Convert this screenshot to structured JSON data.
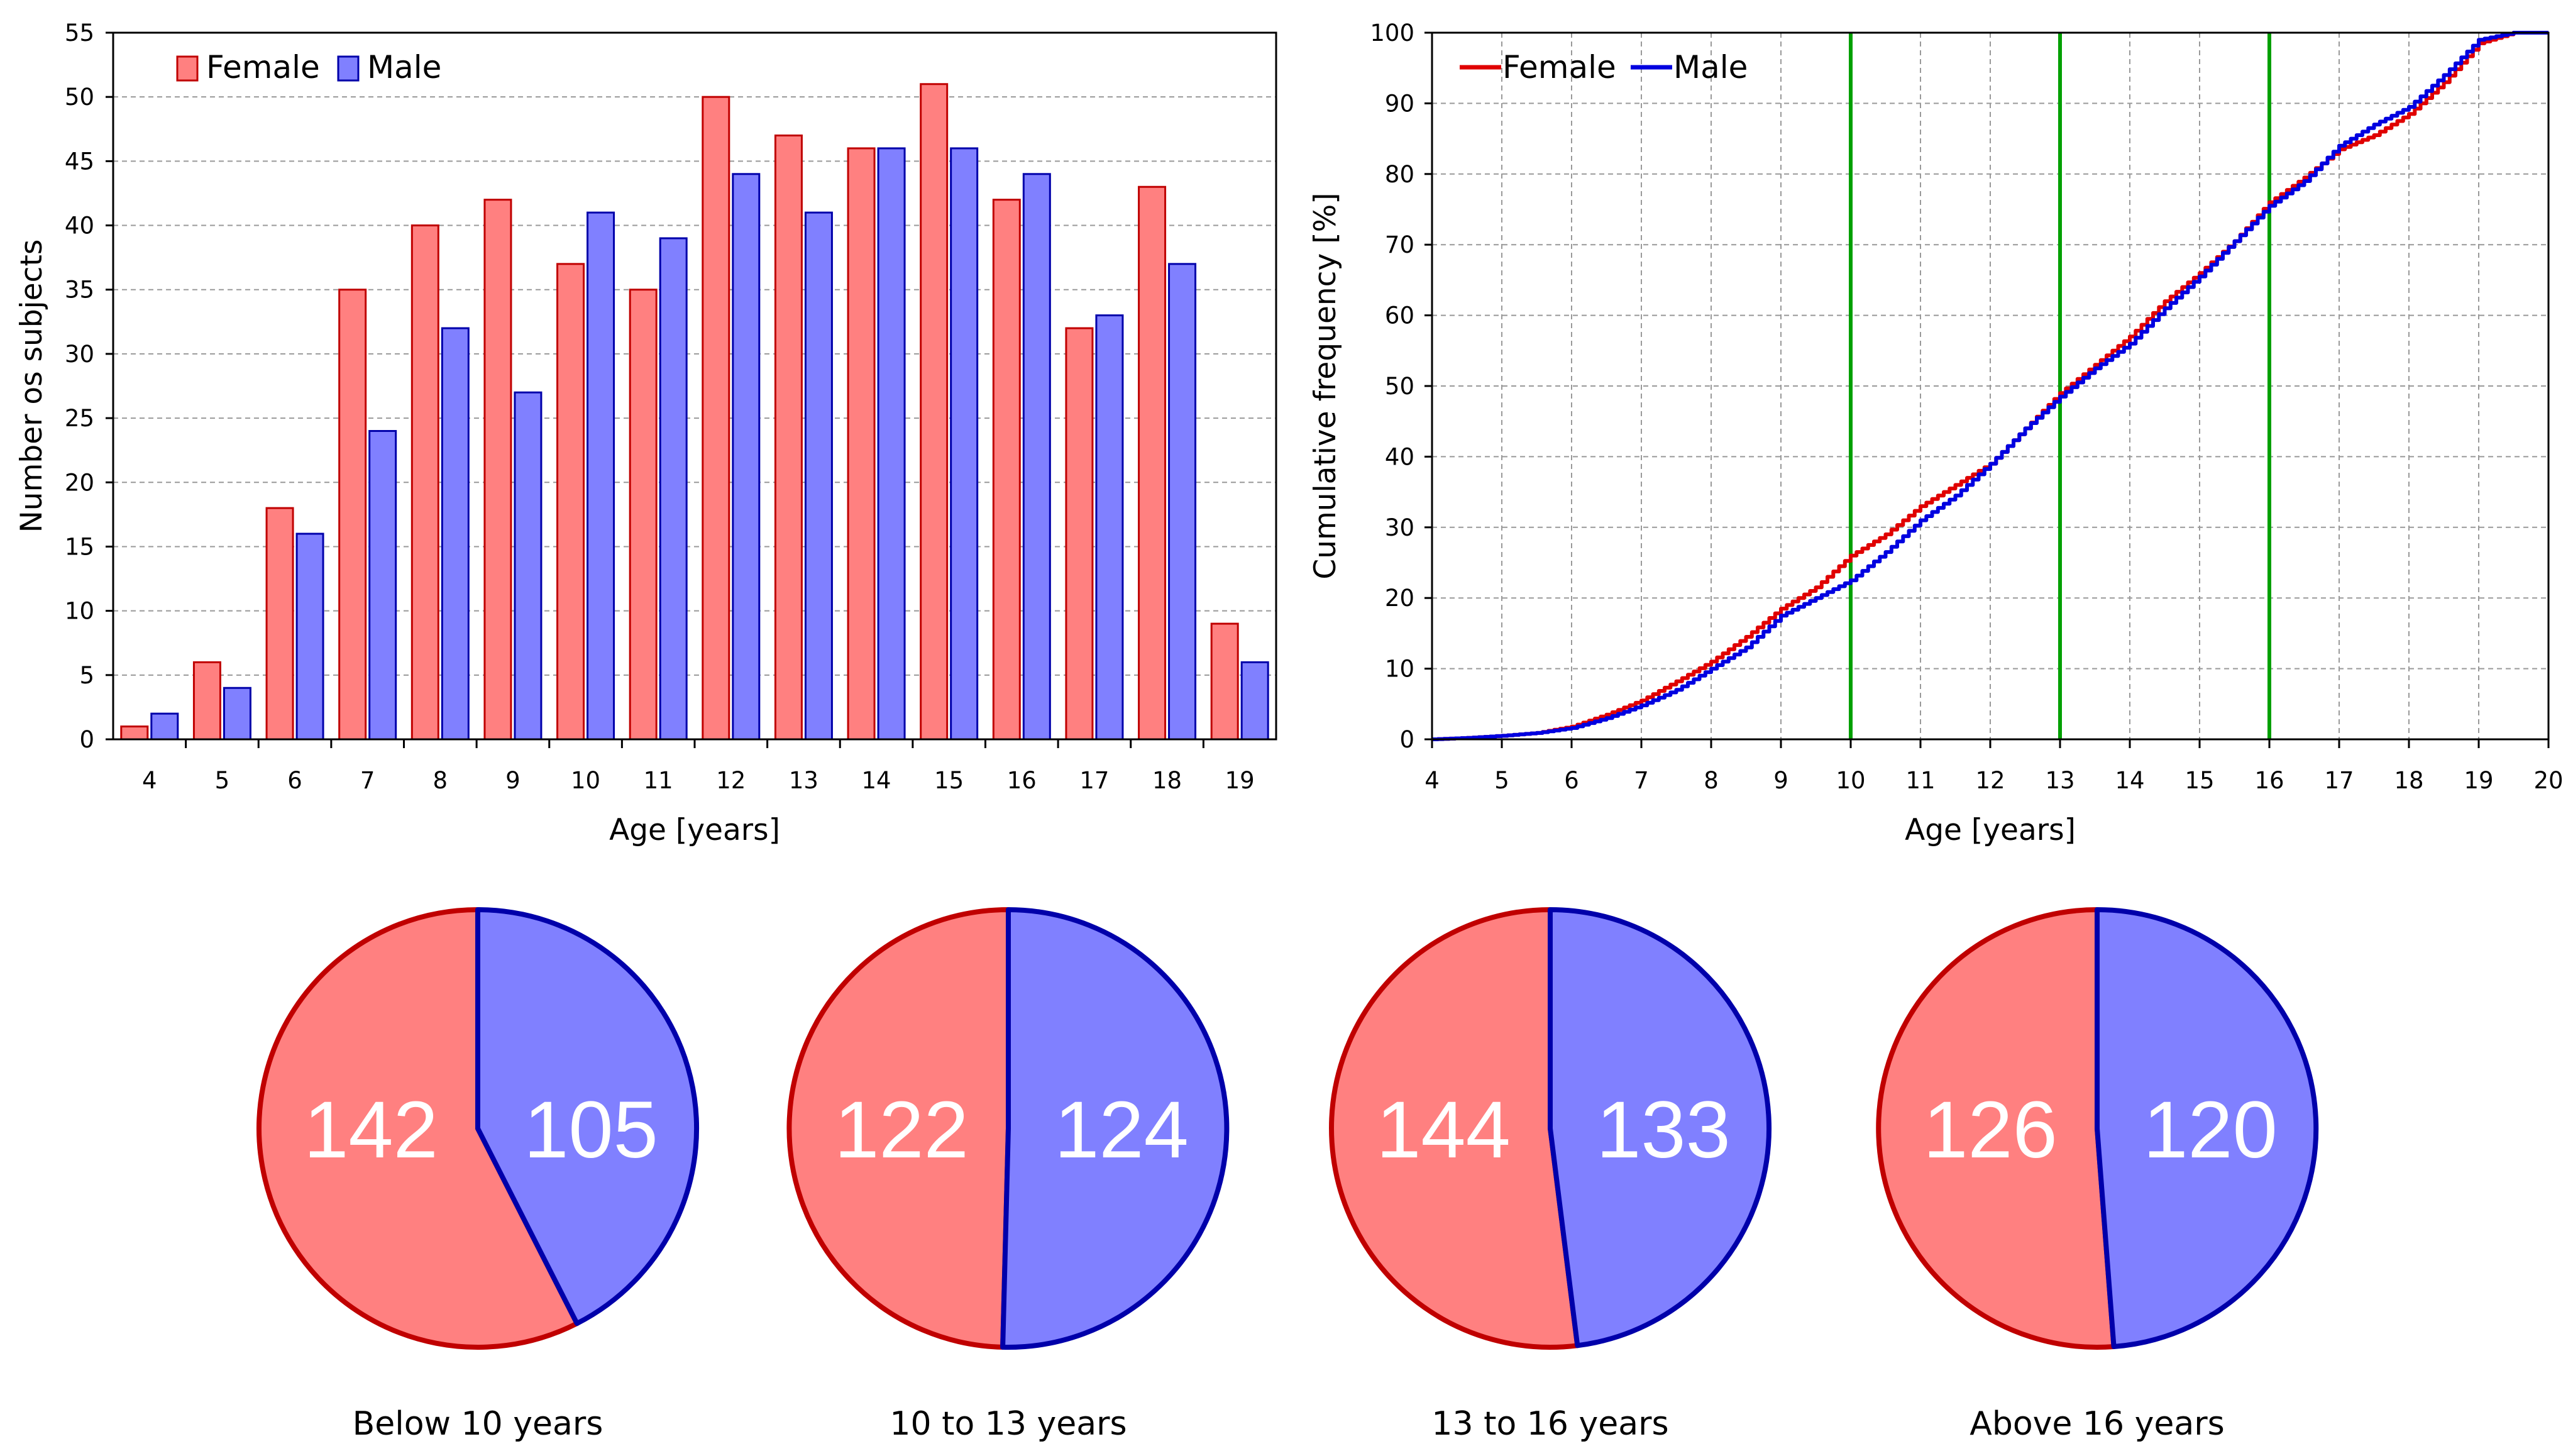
{
  "colors": {
    "female_fill": "#ff8080",
    "female_edge": "#c00000",
    "male_fill": "#8080ff",
    "male_edge": "#0000aa",
    "female_line": "#e00000",
    "male_line": "#0000e0",
    "marker_line": "#00a000",
    "grid": "#999999"
  },
  "chart_data": [
    {
      "type": "bar",
      "title": "",
      "xlabel": "Age [years]",
      "ylabel": "Number os subjects",
      "ylim": [
        0,
        55
      ],
      "yticks": [
        0,
        5,
        10,
        15,
        20,
        25,
        30,
        35,
        40,
        45,
        50,
        55
      ],
      "categories": [
        "4",
        "5",
        "6",
        "7",
        "8",
        "9",
        "10",
        "11",
        "12",
        "13",
        "14",
        "15",
        "16",
        "17",
        "18",
        "19"
      ],
      "series": [
        {
          "name": "Female",
          "values": [
            1,
            6,
            18,
            35,
            40,
            42,
            37,
            35,
            50,
            47,
            46,
            51,
            42,
            32,
            43,
            9
          ]
        },
        {
          "name": "Male",
          "values": [
            2,
            4,
            16,
            24,
            32,
            27,
            41,
            39,
            44,
            41,
            46,
            46,
            44,
            33,
            37,
            6
          ]
        }
      ],
      "grid": true,
      "legend": "top-left"
    },
    {
      "type": "line",
      "title": "",
      "xlabel": "Age [years]",
      "ylabel": "Cumulative frequency [%]",
      "xlim": [
        4,
        20
      ],
      "ylim": [
        0,
        100
      ],
      "xticks": [
        4,
        5,
        6,
        7,
        8,
        9,
        10,
        11,
        12,
        13,
        14,
        15,
        16,
        17,
        18,
        19,
        20
      ],
      "yticks": [
        0,
        10,
        20,
        30,
        40,
        50,
        60,
        70,
        80,
        90,
        100
      ],
      "series": [
        {
          "name": "Female",
          "x": [
            4,
            4.5,
            5,
            5.5,
            6,
            6.5,
            7,
            7.5,
            8,
            8.5,
            9,
            9.5,
            10,
            10.5,
            11,
            11.5,
            12,
            12.5,
            13,
            13.5,
            14,
            14.5,
            15,
            15.5,
            16,
            16.5,
            17,
            17.5,
            18,
            18.5,
            19,
            19.5,
            20
          ],
          "y": [
            0,
            0.2,
            0.5,
            0.9,
            1.8,
            3.5,
            5.5,
            8.2,
            11,
            14.5,
            18.5,
            21.5,
            26,
            29,
            33,
            36,
            39,
            44,
            49,
            53,
            57,
            62,
            66,
            70.5,
            76,
            79.5,
            83.5,
            85.5,
            88.5,
            93,
            98.5,
            100,
            100
          ]
        },
        {
          "name": "Male",
          "x": [
            4,
            4.5,
            5,
            5.5,
            6,
            6.5,
            7,
            7.5,
            8,
            8.5,
            9,
            9.5,
            10,
            10.5,
            11,
            11.5,
            12,
            12.5,
            13,
            13.5,
            14,
            14.5,
            15,
            15.5,
            16,
            16.5,
            17,
            17.5,
            18,
            18.5,
            19,
            19.5,
            20
          ],
          "y": [
            0,
            0.2,
            0.5,
            0.9,
            1.6,
            3,
            4.8,
            7,
            10,
            13,
            17.5,
            20,
            22.5,
            26.5,
            31,
            34.5,
            39,
            44,
            48.5,
            52.5,
            56,
            61,
            65.5,
            70.5,
            75.5,
            79,
            84,
            87,
            89.5,
            94,
            99,
            100,
            100
          ]
        }
      ],
      "vlines": [
        10,
        13,
        16
      ],
      "grid": true,
      "legend": "top-left"
    },
    {
      "type": "pie",
      "charts": [
        {
          "title": "Below 10 years",
          "female": 142,
          "male": 105
        },
        {
          "title": "10 to 13 years",
          "female": 122,
          "male": 124
        },
        {
          "title": "13 to 16 years",
          "female": 144,
          "male": 133
        },
        {
          "title": "Above 16 years",
          "female": 126,
          "male": 120
        }
      ]
    }
  ]
}
